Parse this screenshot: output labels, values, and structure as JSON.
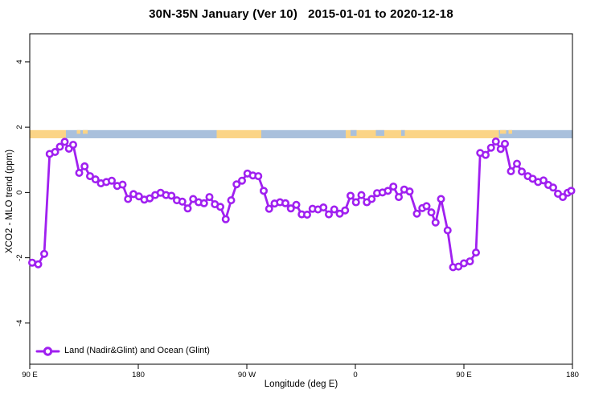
{
  "header": {
    "title": "30N-35N January (Ver 10)   2015-01-01 to 2020-12-18"
  },
  "legend": {
    "label": "Land (Nadir&Glint) and Ocean (Glint)",
    "position": "bottom-left"
  },
  "colors": {
    "series": "#A020F0",
    "marker_fill": "#ffffff",
    "land_band": "#FBD486",
    "ocean_band": "#A9C0DC",
    "axis": "#000000",
    "background": "#ffffff"
  },
  "chart_data": {
    "type": "line",
    "title": "30N-35N January (Ver 10)   2015-01-01 to 2020-12-18",
    "xlabel": "Longitude (deg E)",
    "ylabel": "XCO2 - MLO trend (ppm)",
    "xlim": [
      90,
      540
    ],
    "ylim": [
      -5.26,
      4.86
    ],
    "x_ticks": [
      {
        "pos": 90,
        "label": "90 E"
      },
      {
        "pos": 180,
        "label": "180"
      },
      {
        "pos": 270,
        "label": "90 W"
      },
      {
        "pos": 360,
        "label": "0"
      },
      {
        "pos": 450,
        "label": "90 E"
      },
      {
        "pos": 540,
        "label": "180"
      }
    ],
    "y_ticks": [
      {
        "pos": -4,
        "label": "-4"
      },
      {
        "pos": -2,
        "label": "-2"
      },
      {
        "pos": 0,
        "label": "0"
      },
      {
        "pos": 2,
        "label": "2"
      },
      {
        "pos": 4,
        "label": "4"
      }
    ],
    "grid": false,
    "legend_entries": [
      "Land (Nadir&Glint) and Ocean (Glint)"
    ],
    "map_strip": {
      "value_top": 1.91,
      "value_bottom": 1.66,
      "segments": [
        {
          "from": 90,
          "to": 120,
          "surface": "land"
        },
        {
          "from": 120,
          "to": 245,
          "surface": "ocean"
        },
        {
          "from": 245,
          "to": 282,
          "surface": "land"
        },
        {
          "from": 282,
          "to": 352,
          "surface": "ocean"
        },
        {
          "from": 352,
          "to": 479,
          "surface": "land"
        },
        {
          "from": 479,
          "to": 540,
          "surface": "ocean"
        }
      ],
      "ocean_patches": [
        {
          "from": 356,
          "to": 361
        },
        {
          "from": 377,
          "to": 384
        },
        {
          "from": 398,
          "to": 401
        }
      ],
      "island_flecks": [
        {
          "from": 129,
          "to": 132
        },
        {
          "from": 134,
          "to": 138
        },
        {
          "from": 480,
          "to": 485
        },
        {
          "from": 487,
          "to": 490
        }
      ]
    },
    "series": [
      {
        "name": "Land (Nadir&Glint) and Ocean (Glint)",
        "points": [
          [
            92,
            -2.15
          ],
          [
            97,
            -2.2
          ],
          [
            102,
            -1.88
          ],
          [
            106.5,
            1.18
          ],
          [
            111,
            1.24
          ],
          [
            115,
            1.4
          ],
          [
            119,
            1.55
          ],
          [
            122.5,
            1.34
          ],
          [
            126,
            1.46
          ],
          [
            131,
            0.6
          ],
          [
            135.5,
            0.8
          ],
          [
            140,
            0.5
          ],
          [
            144.5,
            0.4
          ],
          [
            149,
            0.28
          ],
          [
            153.5,
            0.32
          ],
          [
            158,
            0.36
          ],
          [
            162.5,
            0.2
          ],
          [
            167,
            0.24
          ],
          [
            171.5,
            -0.2
          ],
          [
            176,
            -0.05
          ],
          [
            180.5,
            -0.12
          ],
          [
            185,
            -0.22
          ],
          [
            189.5,
            -0.18
          ],
          [
            194,
            -0.08
          ],
          [
            198.5,
            -0.01
          ],
          [
            203,
            -0.08
          ],
          [
            207.5,
            -0.1
          ],
          [
            212,
            -0.24
          ],
          [
            216.5,
            -0.28
          ],
          [
            221,
            -0.49
          ],
          [
            225.5,
            -0.2
          ],
          [
            230,
            -0.3
          ],
          [
            234.5,
            -0.33
          ],
          [
            239,
            -0.14
          ],
          [
            243.5,
            -0.36
          ],
          [
            248,
            -0.44
          ],
          [
            252.5,
            -0.82
          ],
          [
            257,
            -0.24
          ],
          [
            261.5,
            0.25
          ],
          [
            266,
            0.36
          ],
          [
            270.5,
            0.58
          ],
          [
            275,
            0.52
          ],
          [
            279.5,
            0.5
          ],
          [
            284,
            0.05
          ],
          [
            288.5,
            -0.5
          ],
          [
            293,
            -0.34
          ],
          [
            297.5,
            -0.3
          ],
          [
            302,
            -0.33
          ],
          [
            306.5,
            -0.49
          ],
          [
            311,
            -0.38
          ],
          [
            315.5,
            -0.67
          ],
          [
            320,
            -0.68
          ],
          [
            324.5,
            -0.5
          ],
          [
            329,
            -0.52
          ],
          [
            333.5,
            -0.46
          ],
          [
            338,
            -0.67
          ],
          [
            342.5,
            -0.52
          ],
          [
            347,
            -0.65
          ],
          [
            351.5,
            -0.55
          ],
          [
            356,
            -0.1
          ],
          [
            360.5,
            -0.3
          ],
          [
            365,
            -0.08
          ],
          [
            369.5,
            -0.3
          ],
          [
            373.5,
            -0.2
          ],
          [
            378,
            -0.02
          ],
          [
            382.5,
            0.0
          ],
          [
            387,
            0.05
          ],
          [
            391.5,
            0.18
          ],
          [
            396,
            -0.14
          ],
          [
            400.5,
            0.09
          ],
          [
            405,
            0.03
          ],
          [
            411,
            -0.65
          ],
          [
            415.5,
            -0.48
          ],
          [
            419,
            -0.42
          ],
          [
            423,
            -0.61
          ],
          [
            426.5,
            -0.92
          ],
          [
            431,
            -0.2
          ],
          [
            436.5,
            -1.16
          ],
          [
            441,
            -2.29
          ],
          [
            445.5,
            -2.27
          ],
          [
            450,
            -2.17
          ],
          [
            455,
            -2.11
          ],
          [
            460,
            -1.84
          ],
          [
            463.5,
            1.21
          ],
          [
            468,
            1.15
          ],
          [
            472.5,
            1.37
          ],
          [
            476.5,
            1.56
          ],
          [
            480.5,
            1.33
          ],
          [
            484,
            1.49
          ],
          [
            489,
            0.65
          ],
          [
            494,
            0.88
          ],
          [
            498,
            0.64
          ],
          [
            503,
            0.5
          ],
          [
            507,
            0.42
          ],
          [
            511.5,
            0.32
          ],
          [
            516,
            0.37
          ],
          [
            520,
            0.23
          ],
          [
            524,
            0.15
          ],
          [
            528,
            -0.04
          ],
          [
            532,
            -0.14
          ],
          [
            536,
            -0.01
          ],
          [
            539,
            0.05
          ]
        ]
      }
    ]
  }
}
